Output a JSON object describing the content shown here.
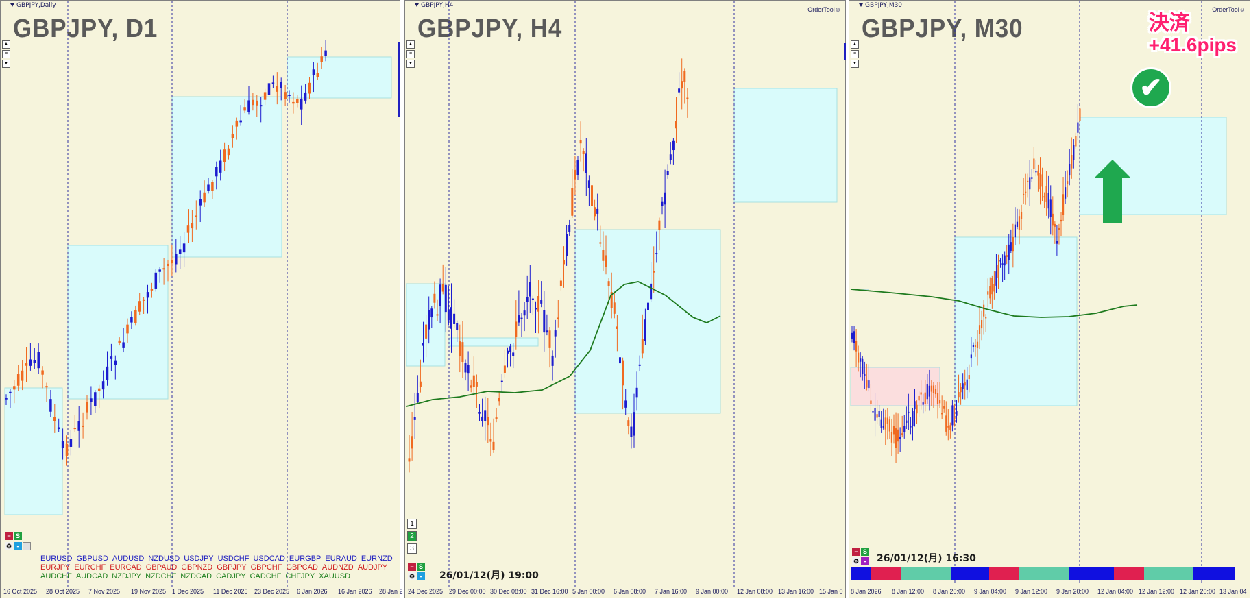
{
  "panels": [
    {
      "window_title": "GBPJPY,Daily",
      "symbol_label": "GBPJPY, D1",
      "order_tool": "",
      "timestamp": "",
      "x_ticks": [
        "16 Oct 2025",
        "28 Oct 2025",
        "7 Nov 2025",
        "19 Nov 2025",
        "1 Dec 2025",
        "11 Dec 2025",
        "23 Dec 2025",
        "6 Jan 2026",
        "16 Jan 2026",
        "28 Jan 2"
      ],
      "pairs": [
        [
          {
            "t": "EURUSD",
            "c": "#2020c0"
          },
          {
            "t": "GBPUSD",
            "c": "#2020c0"
          },
          {
            "t": "AUDUSD",
            "c": "#2020c0"
          },
          {
            "t": "NZDUSD",
            "c": "#2020c0"
          },
          {
            "t": "USDJPY",
            "c": "#2020c0"
          },
          {
            "t": "USDCHF",
            "c": "#2020c0"
          },
          {
            "t": "USDCAD",
            "c": "#2020c0"
          },
          {
            "t": "EURGBP",
            "c": "#2020c0"
          },
          {
            "t": "EURAUD",
            "c": "#2020c0"
          },
          {
            "t": "EURNZD",
            "c": "#2020c0"
          }
        ],
        [
          {
            "t": "EURJPY",
            "c": "#d02020"
          },
          {
            "t": "EURCHF",
            "c": "#d02020"
          },
          {
            "t": "EURCAD",
            "c": "#d02020"
          },
          {
            "t": "GBPAUD",
            "c": "#d02020"
          },
          {
            "t": "GBPNZD",
            "c": "#d02020"
          },
          {
            "t": "GBPJPY",
            "c": "#d02020"
          },
          {
            "t": "GBPCHF",
            "c": "#d02020"
          },
          {
            "t": "GBPCAD",
            "c": "#d02020"
          },
          {
            "t": "AUDNZD",
            "c": "#d02020"
          },
          {
            "t": "AUDJPY",
            "c": "#d02020"
          }
        ],
        [
          {
            "t": "AUDCHF",
            "c": "#208020"
          },
          {
            "t": "AUDCAD",
            "c": "#208020"
          },
          {
            "t": "NZDJPY",
            "c": "#208020"
          },
          {
            "t": "NZDCHF",
            "c": "#208020"
          },
          {
            "t": "NZDCAD",
            "c": "#208020"
          },
          {
            "t": "CADJPY",
            "c": "#208020"
          },
          {
            "t": "CADCHF",
            "c": "#208020"
          },
          {
            "t": "CHFJPY",
            "c": "#208020"
          },
          {
            "t": "XAUUSD",
            "c": "#208020"
          }
        ]
      ]
    },
    {
      "window_title": "GBPJPY,H4",
      "symbol_label": "GBPJPY, H4",
      "order_tool": "OrderTool☺",
      "timestamp": "26/01/12(月) 19:00",
      "x_ticks": [
        "24 Dec 2025",
        "29 Dec 00:00",
        "30 Dec 08:00",
        "31 Dec 16:00",
        "5 Jan 00:00",
        "6 Jan 08:00",
        "7 Jan 16:00",
        "9 Jan 00:00",
        "12 Jan 08:00",
        "13 Jan 16:00",
        "15 Jan 0"
      ],
      "tf_buttons": [
        "1",
        "2",
        "3"
      ]
    },
    {
      "window_title": "GBPJPY,M30",
      "symbol_label": "GBPJPY, M30",
      "order_tool": "OrderTool☺",
      "timestamp": "26/01/12(月) 16:30",
      "x_ticks": [
        "8 Jan 2026",
        "8 Jan 12:00",
        "8 Jan 20:00",
        "9 Jan 04:00",
        "9 Jan 12:00",
        "9 Jan 20:00",
        "12 Jan 04:00",
        "12 Jan 12:00",
        "12 Jan 20:00",
        "13 Jan 04"
      ]
    }
  ],
  "annotation": {
    "line1": "決済",
    "line2": "+41.6pips",
    "check": "✔"
  },
  "colors": {
    "bull": "#1c1ccf",
    "bear": "#f06a20",
    "box": "#d9fbfb",
    "ma": "#1e7a1e"
  }
}
